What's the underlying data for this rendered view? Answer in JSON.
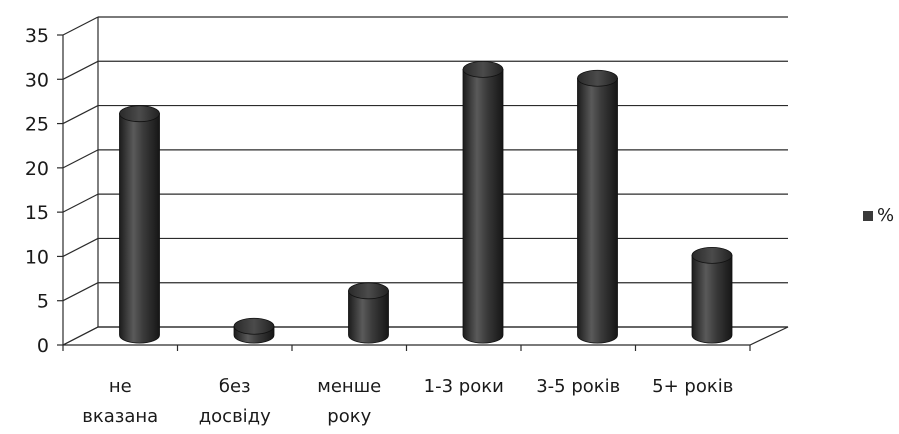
{
  "chart_data": {
    "type": "bar",
    "style": "3d-cylinder",
    "categories": [
      [
        "не",
        "вказана"
      ],
      [
        "без",
        "досвіду"
      ],
      [
        "менше",
        "року"
      ],
      [
        "1-3 роки"
      ],
      [
        "3-5 років"
      ],
      [
        "5+ років"
      ]
    ],
    "series": [
      {
        "name": "%",
        "values": [
          25,
          1,
          5,
          30,
          29,
          9
        ],
        "color": "#3a3a3a"
      }
    ],
    "yticks": [
      "0",
      "5",
      "10",
      "15",
      "20",
      "25",
      "30",
      "35"
    ],
    "ylim": [
      0,
      35
    ],
    "grid": true,
    "legend_position": "right"
  }
}
